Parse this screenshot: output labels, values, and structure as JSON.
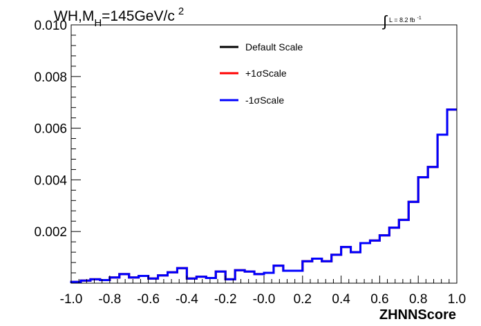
{
  "chart_data": {
    "type": "line",
    "title": {
      "prefix": "WH,M",
      "subscript": "H",
      "main": "=145GeV/c",
      "superscript": "2"
    },
    "lumi_label": {
      "integral_symbol": "∫",
      "text": "L = 8.2 fb",
      "superscript": "-1"
    },
    "xlabel": "ZHNNScore",
    "ylabel": "",
    "xlim": [
      -1.0,
      1.0
    ],
    "ylim": [
      0,
      0.01
    ],
    "x_ticks": [
      "-1.0",
      "-0.8",
      "-0.6",
      "-0.4",
      "-0.2",
      "-0.0",
      "0.2",
      "0.4",
      "0.6",
      "0.8",
      "1.0"
    ],
    "y_ticks": [
      "0.002",
      "0.004",
      "0.006",
      "0.008",
      "0.010"
    ],
    "legend_position": "top-center",
    "bin_edges": [
      -1.0,
      -0.95,
      -0.9,
      -0.85,
      -0.8,
      -0.75,
      -0.7,
      -0.65,
      -0.6,
      -0.55,
      -0.5,
      -0.45,
      -0.4,
      -0.35,
      -0.3,
      -0.25,
      -0.2,
      -0.15,
      -0.1,
      -0.05,
      0.0,
      0.05,
      0.1,
      0.15,
      0.2,
      0.25,
      0.3,
      0.35,
      0.4,
      0.45,
      0.5,
      0.55,
      0.6,
      0.65,
      0.7,
      0.75,
      0.8,
      0.85,
      0.9,
      0.95,
      1.0
    ],
    "series": [
      {
        "name": "Default Scale",
        "color": "#000000",
        "values": [
          5e-05,
          0.0001,
          0.00015,
          0.00012,
          0.00022,
          0.00035,
          0.00022,
          0.00028,
          0.00018,
          0.0003,
          0.00042,
          0.00058,
          0.00018,
          0.00025,
          0.0002,
          0.00045,
          0.00015,
          0.0005,
          0.00045,
          0.00035,
          0.0004,
          0.00068,
          0.00048,
          0.00048,
          0.00085,
          0.00095,
          0.00085,
          0.0011,
          0.0014,
          0.0012,
          0.00155,
          0.00165,
          0.00185,
          0.00215,
          0.00245,
          0.00315,
          0.0041,
          0.0045,
          0.00575,
          0.00672
        ]
      },
      {
        "name": "+1σScale",
        "color": "#ff0000",
        "values": [
          5e-05,
          0.0001,
          0.00015,
          0.00012,
          0.00022,
          0.00035,
          0.00022,
          0.00028,
          0.00018,
          0.0003,
          0.00042,
          0.00058,
          0.00018,
          0.00025,
          0.0002,
          0.00045,
          0.00015,
          0.0005,
          0.00045,
          0.00035,
          0.0004,
          0.00068,
          0.00048,
          0.00048,
          0.00085,
          0.00095,
          0.00085,
          0.0011,
          0.0014,
          0.0012,
          0.00155,
          0.00165,
          0.00185,
          0.00215,
          0.00245,
          0.00315,
          0.0041,
          0.0045,
          0.00575,
          0.00672
        ]
      },
      {
        "name": "-1σScale",
        "color": "#0000ff",
        "values": [
          5e-05,
          0.0001,
          0.00015,
          0.00012,
          0.00022,
          0.00035,
          0.00022,
          0.00028,
          0.00018,
          0.0003,
          0.00042,
          0.00058,
          0.00018,
          0.00025,
          0.0002,
          0.00045,
          0.00015,
          0.0005,
          0.00045,
          0.00035,
          0.0004,
          0.00068,
          0.00048,
          0.00048,
          0.00085,
          0.00095,
          0.00085,
          0.0011,
          0.0014,
          0.0012,
          0.00155,
          0.00165,
          0.00185,
          0.00215,
          0.00245,
          0.00315,
          0.0041,
          0.0045,
          0.00575,
          0.00672
        ]
      }
    ]
  }
}
